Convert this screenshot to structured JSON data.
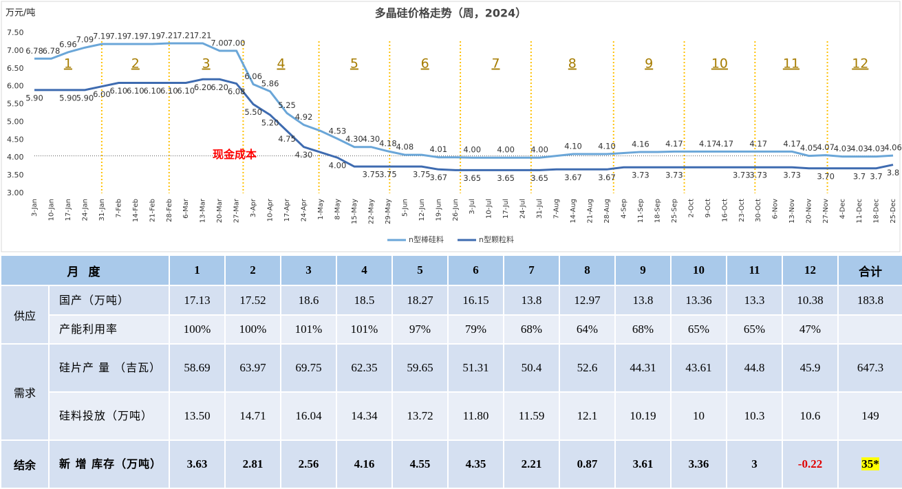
{
  "chart_data": {
    "type": "line",
    "title": "多晶硅价格走势（周，2024）",
    "y_label": "万元/吨",
    "categories": [
      "3-Jan",
      "10-Jan",
      "17-Jan",
      "24-Jan",
      "31-Jan",
      "7-Feb",
      "14-Feb",
      "21-Feb",
      "28-Feb",
      "6-Mar",
      "13-Mar",
      "20-Mar",
      "27-Mar",
      "3-Apr",
      "10-Apr",
      "17-Apr",
      "24-Apr",
      "1-May",
      "8-May",
      "15-May",
      "22-May",
      "29-May",
      "5-Jun",
      "12-Jun",
      "19-Jun",
      "26-Jun",
      "3-Jul",
      "10-Jul",
      "17-Jul",
      "24-Jul",
      "31-Jul",
      "7-Aug",
      "14-Aug",
      "21-Aug",
      "28-Aug",
      "4-Sep",
      "11-Sep",
      "18-Sep",
      "25-Sep",
      "2-Oct",
      "9-Oct",
      "16-Oct",
      "23-Oct",
      "30-Oct",
      "6-Nov",
      "13-Nov",
      "20-Nov",
      "27-Nov",
      "4-Dec",
      "11-Dec",
      "18-Dec",
      "25-Dec"
    ],
    "series": [
      {
        "name": "n型棒硅料",
        "color": "#6aa6d8",
        "values": [
          6.78,
          6.78,
          6.96,
          7.09,
          7.19,
          7.19,
          7.19,
          7.19,
          7.21,
          7.21,
          7.21,
          7.0,
          7.0,
          6.06,
          5.86,
          5.25,
          4.92,
          4.75,
          4.53,
          4.3,
          4.3,
          4.18,
          4.08,
          4.08,
          4.01,
          4.01,
          4.0,
          4.0,
          4.0,
          4.0,
          4.0,
          4.05,
          4.1,
          4.1,
          4.1,
          4.13,
          4.16,
          4.16,
          4.17,
          4.17,
          4.17,
          4.17,
          4.17,
          4.17,
          4.17,
          4.17,
          4.05,
          4.07,
          4.03,
          4.03,
          4.03,
          4.06
        ],
        "value_labels": [
          "6.78",
          "6.78",
          "6.96",
          "7.09",
          "7.19",
          "7.19",
          "7.19",
          "7.19",
          "7.21",
          "7.21",
          "7.21",
          "7.00",
          "7.00",
          "6.06",
          "5.86",
          "5.25",
          "4.92",
          null,
          "4.53",
          "4.30",
          "4.30",
          "4.18",
          "4.08",
          null,
          "4.01",
          null,
          "4.00",
          null,
          "4.00",
          null,
          "4.00",
          null,
          "4.10",
          null,
          "4.10",
          null,
          "4.16",
          null,
          "4.17",
          null,
          "4.17",
          "4.17",
          null,
          "4.17",
          null,
          "4.17",
          "4.05",
          "4.07",
          "4.03",
          "4.03",
          "4.03",
          "4.06"
        ]
      },
      {
        "name": "n型颗粒料",
        "color": "#3e6bb0",
        "values": [
          5.9,
          5.9,
          5.9,
          5.9,
          6.0,
          6.1,
          6.1,
          6.1,
          6.1,
          6.1,
          6.2,
          6.2,
          6.08,
          5.5,
          5.2,
          4.75,
          4.3,
          4.15,
          4.0,
          3.75,
          3.75,
          3.75,
          3.75,
          3.75,
          3.67,
          3.65,
          3.65,
          3.65,
          3.65,
          3.65,
          3.65,
          3.67,
          3.67,
          3.67,
          3.67,
          3.73,
          3.73,
          3.73,
          3.73,
          3.73,
          3.73,
          3.73,
          3.73,
          3.73,
          3.73,
          3.73,
          3.7,
          3.7,
          3.7,
          3.7,
          3.7,
          3.8
        ],
        "value_labels": [
          "5.90",
          null,
          "5.90",
          "5.90",
          "6.00",
          "6.10",
          "6.10",
          "6.10",
          "6.10",
          "6.10",
          "6.20",
          "6.20",
          "6.08",
          "5.50",
          "5.20",
          "4.75",
          "4.30",
          null,
          "4.00",
          null,
          "3.75",
          "3.75",
          null,
          "3.75",
          "3.67",
          null,
          "3.65",
          null,
          "3.65",
          null,
          "3.65",
          null,
          "3.67",
          null,
          "3.67",
          null,
          "3.73",
          null,
          "3.73",
          null,
          null,
          null,
          "3.73",
          "3.73",
          null,
          "3.73",
          null,
          "3.70",
          null,
          "3.7",
          "3.7",
          "3.8"
        ]
      }
    ],
    "ylim": [
      3,
      7.5
    ],
    "yticks": [
      {
        "value": 3,
        "label": "3.00"
      },
      {
        "value": 3.5,
        "label": "3.50"
      },
      {
        "value": 4,
        "label": "4.00"
      },
      {
        "value": 4.5,
        "label": "4.50"
      },
      {
        "value": 5,
        "label": "5.00"
      },
      {
        "value": 5.5,
        "label": "5.50"
      },
      {
        "value": 6,
        "label": "6.00"
      },
      {
        "value": 6.5,
        "label": "6.50"
      },
      {
        "value": 7,
        "label": "7.00"
      },
      {
        "value": 7.5,
        "label": "7.50"
      }
    ],
    "grid": false,
    "legend": "bottom",
    "reference_line": {
      "value": 4.05,
      "label": "现金成本",
      "color": "#ff0000"
    },
    "month_labels": [
      "1",
      "2",
      "3",
      "4",
      "5",
      "6",
      "7",
      "8",
      "9",
      "10",
      "11",
      "12"
    ]
  },
  "table": {
    "header": [
      "月 度",
      "1",
      "2",
      "3",
      "4",
      "5",
      "6",
      "7",
      "8",
      "9",
      "10",
      "11",
      "12",
      "合计"
    ],
    "groups": [
      {
        "name": "供应",
        "rows": [
          {
            "label": "国产（万吨）",
            "cells": [
              "17.13",
              "17.52",
              "18.6",
              "18.5",
              "18.27",
              "16.15",
              "13.8",
              "12.97",
              "13.8",
              "13.36",
              "13.3",
              "10.38",
              "183.8"
            ]
          },
          {
            "label": "产能利用率",
            "cells": [
              "100%",
              "100%",
              "101%",
              "101%",
              "97%",
              "79%",
              "68%",
              "64%",
              "68%",
              "65%",
              "65%",
              "47%"
            ]
          }
        ]
      },
      {
        "name": "需求",
        "rows": [
          {
            "label": "硅片产 量 （吉瓦）",
            "cells": [
              "58.69",
              "63.97",
              "69.75",
              "62.35",
              "59.65",
              "51.31",
              "50.4",
              "52.6",
              "44.31",
              "43.61",
              "44.8",
              "45.9",
              "647.3"
            ]
          },
          {
            "label": "硅料投放（万吨）",
            "cells": [
              "13.50",
              "14.71",
              "16.04",
              "14.34",
              "13.72",
              "11.80",
              "11.59",
              "12.1",
              "10.19",
              "10",
              "10.3",
              "10.6",
              "149"
            ]
          }
        ]
      },
      {
        "name": "结余",
        "rows": [
          {
            "label": "新 增 库存（万吨）",
            "cells": [
              "3.63",
              "2.81",
              "2.56",
              "4.16",
              "4.55",
              "4.35",
              "2.21",
              "0.87",
              "3.61",
              "3.36",
              "3",
              "-0.22",
              "35*"
            ]
          }
        ]
      }
    ]
  }
}
